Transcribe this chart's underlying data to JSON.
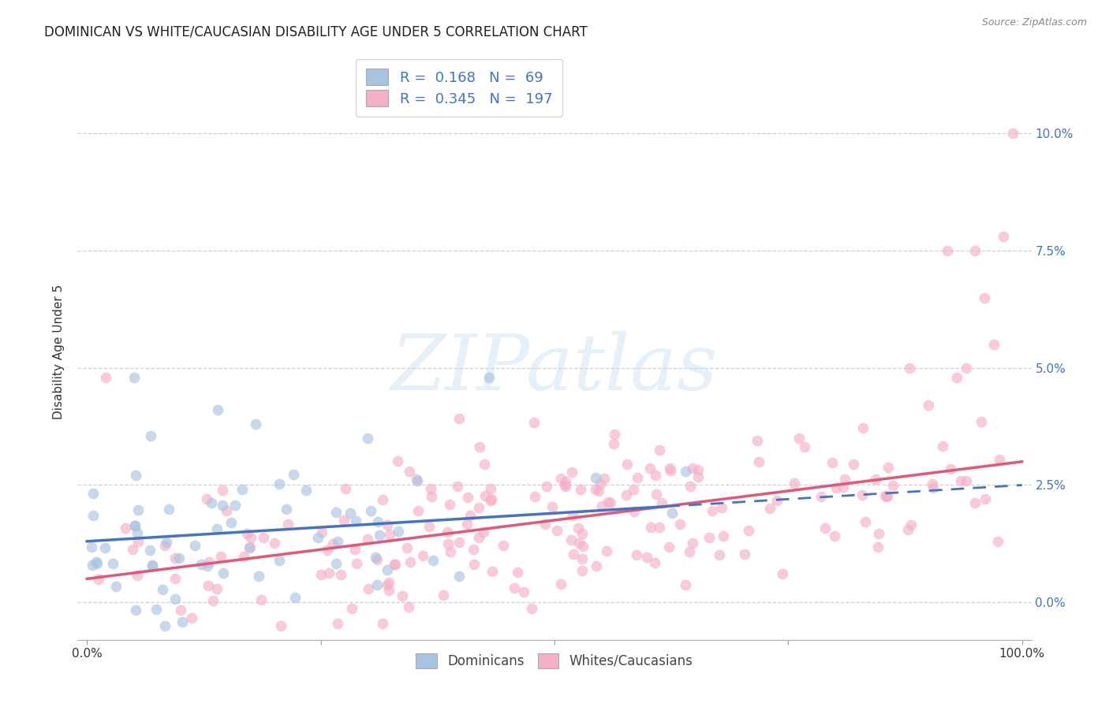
{
  "title": "DOMINICAN VS WHITE/CAUCASIAN DISABILITY AGE UNDER 5 CORRELATION CHART",
  "source": "Source: ZipAtlas.com",
  "ylabel": "Disability Age Under 5",
  "xlim": [
    -0.01,
    1.01
  ],
  "ylim": [
    -0.008,
    0.115
  ],
  "ytick_values": [
    0.0,
    0.025,
    0.05,
    0.075,
    0.1
  ],
  "xtick_values": [
    0.0,
    0.25,
    0.5,
    0.75,
    1.0
  ],
  "xtick_labels": [
    "0.0%",
    "",
    "",
    "",
    "100.0%"
  ],
  "dominican_R": 0.168,
  "dominican_N": 69,
  "white_R": 0.345,
  "white_N": 197,
  "dominican_color": "#a8c4e0",
  "dominican_line_color": "#4472c4",
  "white_color": "#f4b0c4",
  "white_line_color": "#e05878",
  "marker_size": 100,
  "marker_alpha": 0.65,
  "title_fontsize": 12,
  "label_fontsize": 11,
  "tick_fontsize": 11,
  "legend_fontsize": 13,
  "watermark_text": "ZIPatlas",
  "background_color": "#ffffff",
  "grid_color": "#d0d0d0"
}
